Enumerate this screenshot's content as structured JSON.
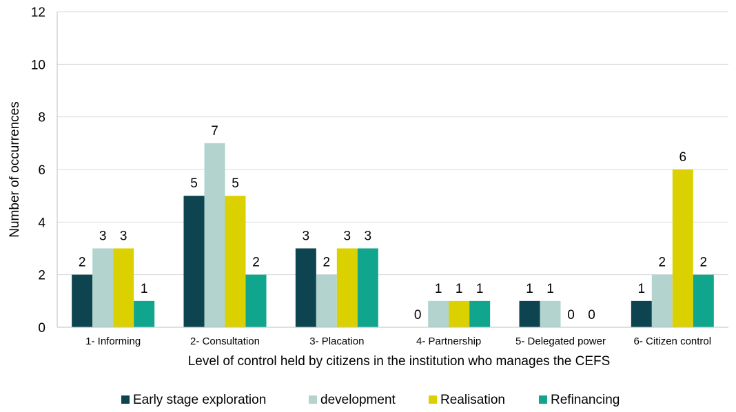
{
  "chart_data": {
    "type": "bar",
    "title": "",
    "xlabel": "Level of control held by citizens in the institution who manages the CEFS",
    "ylabel": "Number of occurrences",
    "ylim": [
      0,
      12
    ],
    "yticks": [
      0,
      2,
      4,
      6,
      8,
      10,
      12
    ],
    "grid": true,
    "legend_position": "bottom",
    "categories": [
      "1- Informing",
      "2- Consultation",
      "3- Placation",
      "4- Partnership",
      "5- Delegated power",
      "6- Citizen control"
    ],
    "series": [
      {
        "name": "Early stage exploration",
        "color": "#0d4450",
        "values": [
          2,
          5,
          3,
          0,
          1,
          1
        ]
      },
      {
        "name": "development",
        "color": "#b2d3ce",
        "values": [
          3,
          7,
          2,
          1,
          1,
          2
        ]
      },
      {
        "name": "Realisation",
        "color": "#dcd100",
        "values": [
          3,
          5,
          3,
          1,
          0,
          6
        ]
      },
      {
        "name": "Refinancing",
        "color": "#10a68e",
        "values": [
          1,
          2,
          3,
          1,
          0,
          2
        ]
      }
    ]
  }
}
